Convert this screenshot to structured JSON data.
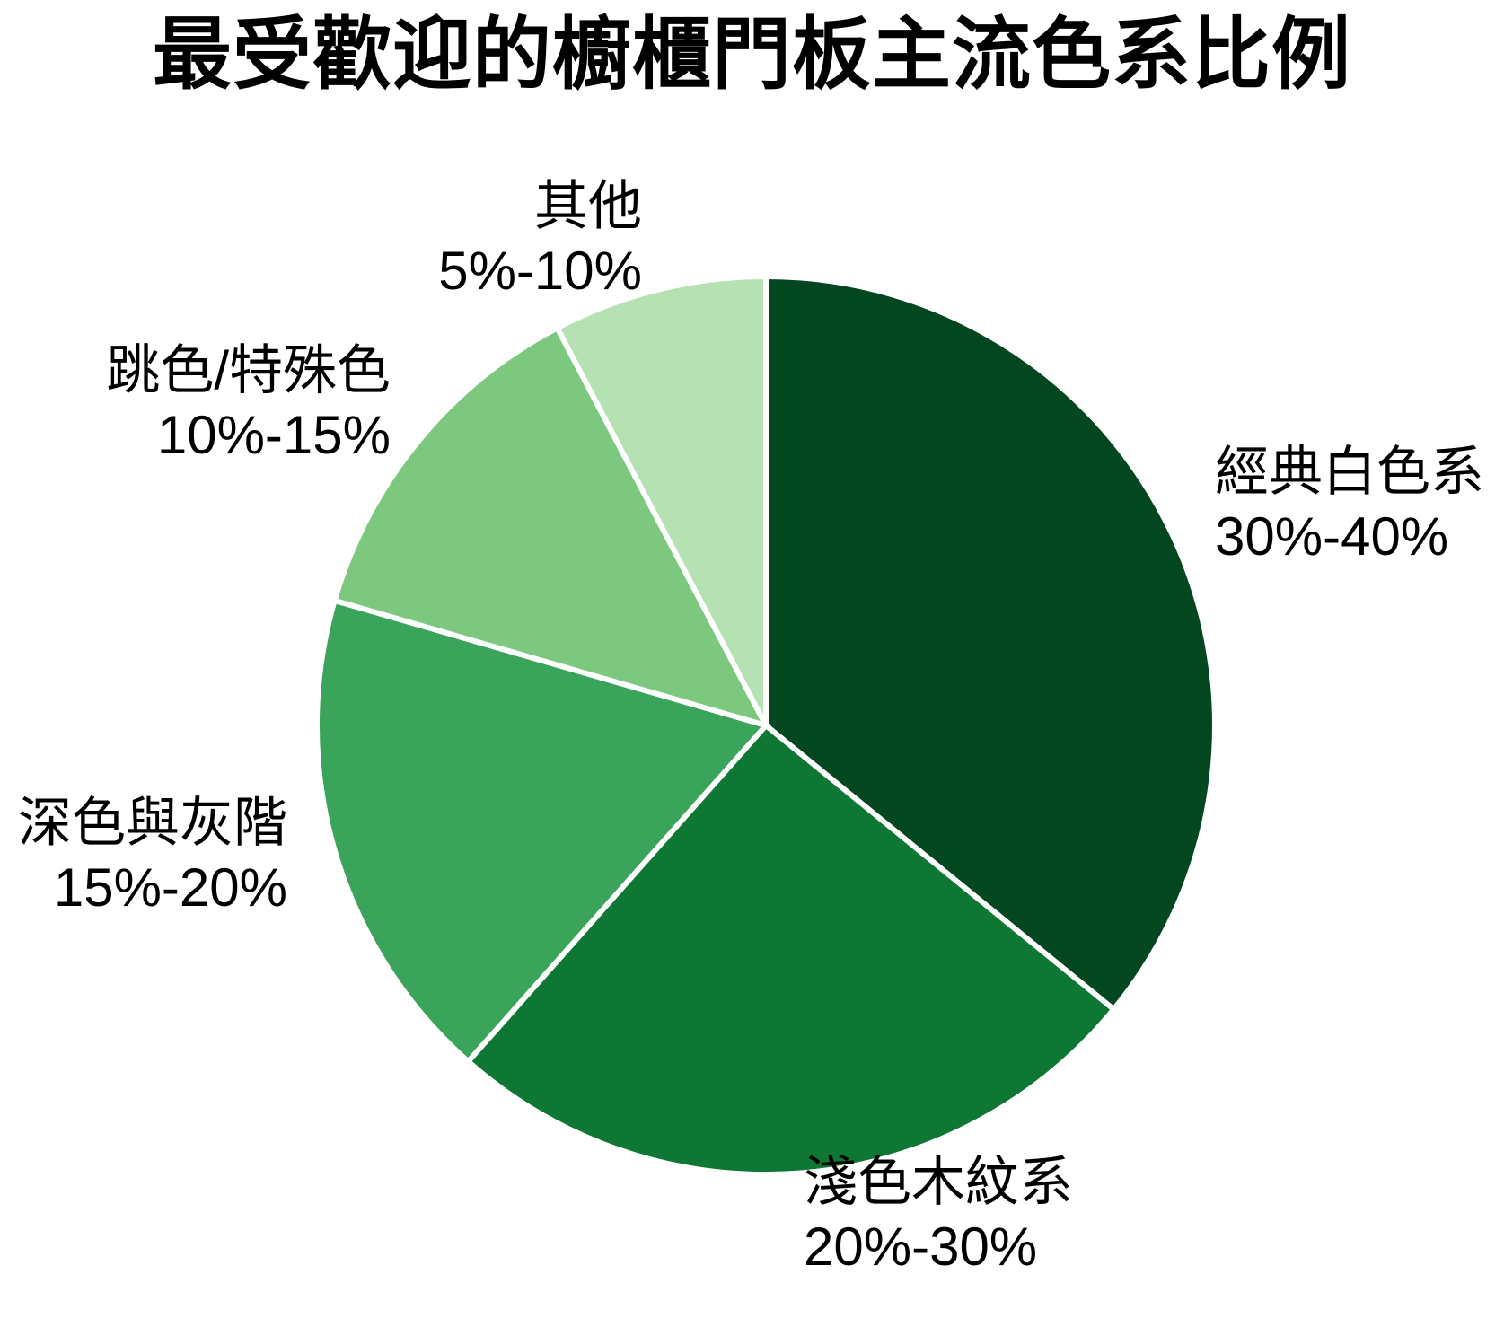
{
  "chart_data": {
    "type": "pie",
    "title": "最受歡迎的櫥櫃門板主流色系比例",
    "legend_position": "none",
    "label_style": "outside, two lines: category + percent range",
    "background_color": "#ffffff",
    "slice_border_color": "#ffffff",
    "slices": [
      {
        "label": "經典白色系",
        "range": "30%-40%",
        "value": 35,
        "color": "#034720"
      },
      {
        "label": "淺色木紋系",
        "range": "20%-30%",
        "value": 25,
        "color": "#0e7734"
      },
      {
        "label": "深色與灰階",
        "range": "15%-20%",
        "value": 17.5,
        "color": "#3ba45b"
      },
      {
        "label": "跳色/特殊色",
        "range": "10%-15%",
        "value": 12.5,
        "color": "#7cc87e"
      },
      {
        "label": "其他",
        "range": "5%-10%",
        "value": 7.5,
        "color": "#b6e2b3"
      }
    ],
    "start_angle_deg_from_top": 0,
    "direction": "clockwise"
  }
}
